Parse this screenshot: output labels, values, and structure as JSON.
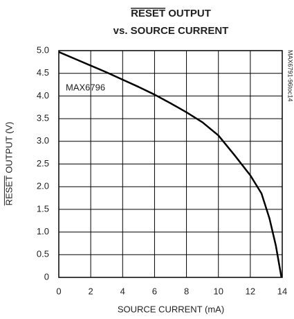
{
  "chart_data": {
    "type": "line",
    "title_lines": [
      "RESET OUTPUT",
      "vs. SOURCE CURRENT"
    ],
    "xlabel": "SOURCE CURRENT (mA)",
    "ylabel": "RESET OUTPUT (V)",
    "annotation": "MAX6796",
    "side_note": "MAX6791-96toc14",
    "xlim": [
      0,
      14
    ],
    "ylim": [
      0,
      5
    ],
    "xticks": [
      0,
      2,
      4,
      6,
      8,
      10,
      12,
      14
    ],
    "yticks": [
      0,
      0.5,
      {
        "value": 1,
        "label": "1.0"
      },
      1.5,
      {
        "value": 2,
        "label": "2.0"
      },
      2.5,
      {
        "value": 3,
        "label": "3.0"
      },
      3.5,
      {
        "value": 4,
        "label": "4.0"
      },
      4.5,
      {
        "value": 5,
        "label": "5.0"
      }
    ],
    "grid": true,
    "series": [
      {
        "name": "MAX6796",
        "color": "#000000",
        "x": [
          0,
          1,
          2,
          3,
          4,
          5,
          6,
          7,
          8,
          9,
          10,
          11,
          12,
          12.7,
          13.2,
          13.6,
          13.95
        ],
        "values": [
          4.97,
          4.82,
          4.67,
          4.52,
          4.36,
          4.2,
          4.03,
          3.84,
          3.64,
          3.42,
          3.13,
          2.7,
          2.25,
          1.85,
          1.3,
          0.7,
          0
        ]
      }
    ]
  }
}
